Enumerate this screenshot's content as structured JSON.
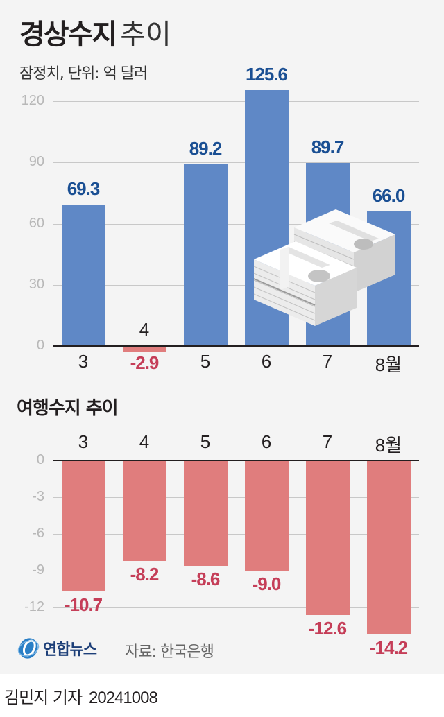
{
  "header": {
    "title_bold": "경상수지",
    "title_light": "추이",
    "subtitle": "잠정치, 단위: 억 달러"
  },
  "section2": {
    "title": "여행수지 추이"
  },
  "footer": {
    "logo_text": "연합뉴스",
    "source": "자료: 한국은행",
    "byline": "김민지 기자",
    "date": "20241008"
  },
  "colors": {
    "positive_bar": "#5f88c6",
    "negative_bar": "#e07d7d",
    "positive_label": "#1a4f93",
    "negative_label": "#c53e58",
    "background": "#f4f4f4"
  },
  "chart_data": [
    {
      "type": "bar",
      "title": "경상수지 추이",
      "subtitle": "잠정치, 단위: 억 달러",
      "categories": [
        "3",
        "4",
        "5",
        "6",
        "7",
        "8월"
      ],
      "values": [
        69.3,
        -2.9,
        89.2,
        125.6,
        89.7,
        66.0
      ],
      "value_labels": [
        "69.3",
        "-2.9",
        "89.2",
        "125.6",
        "89.7",
        "66.0"
      ],
      "yticks": [
        "0",
        "30",
        "60",
        "90",
        "120"
      ],
      "ylim": [
        -5,
        130
      ],
      "xlabel": "",
      "ylabel": "억 달러",
      "grid": true,
      "legend": null
    },
    {
      "type": "bar",
      "title": "여행수지 추이",
      "categories": [
        "3",
        "4",
        "5",
        "6",
        "7",
        "8월"
      ],
      "values": [
        -10.7,
        -8.2,
        -8.6,
        -9.0,
        -12.6,
        -14.2
      ],
      "value_labels": [
        "-10.7",
        "-8.2",
        "-8.6",
        "-9.0",
        "-12.6",
        "-14.2"
      ],
      "yticks": [
        "0",
        "-3",
        "-6",
        "-9",
        "-12"
      ],
      "ylim": [
        -15,
        0
      ],
      "xlabel": "",
      "ylabel": "억 달러",
      "grid": true,
      "legend": null
    }
  ]
}
